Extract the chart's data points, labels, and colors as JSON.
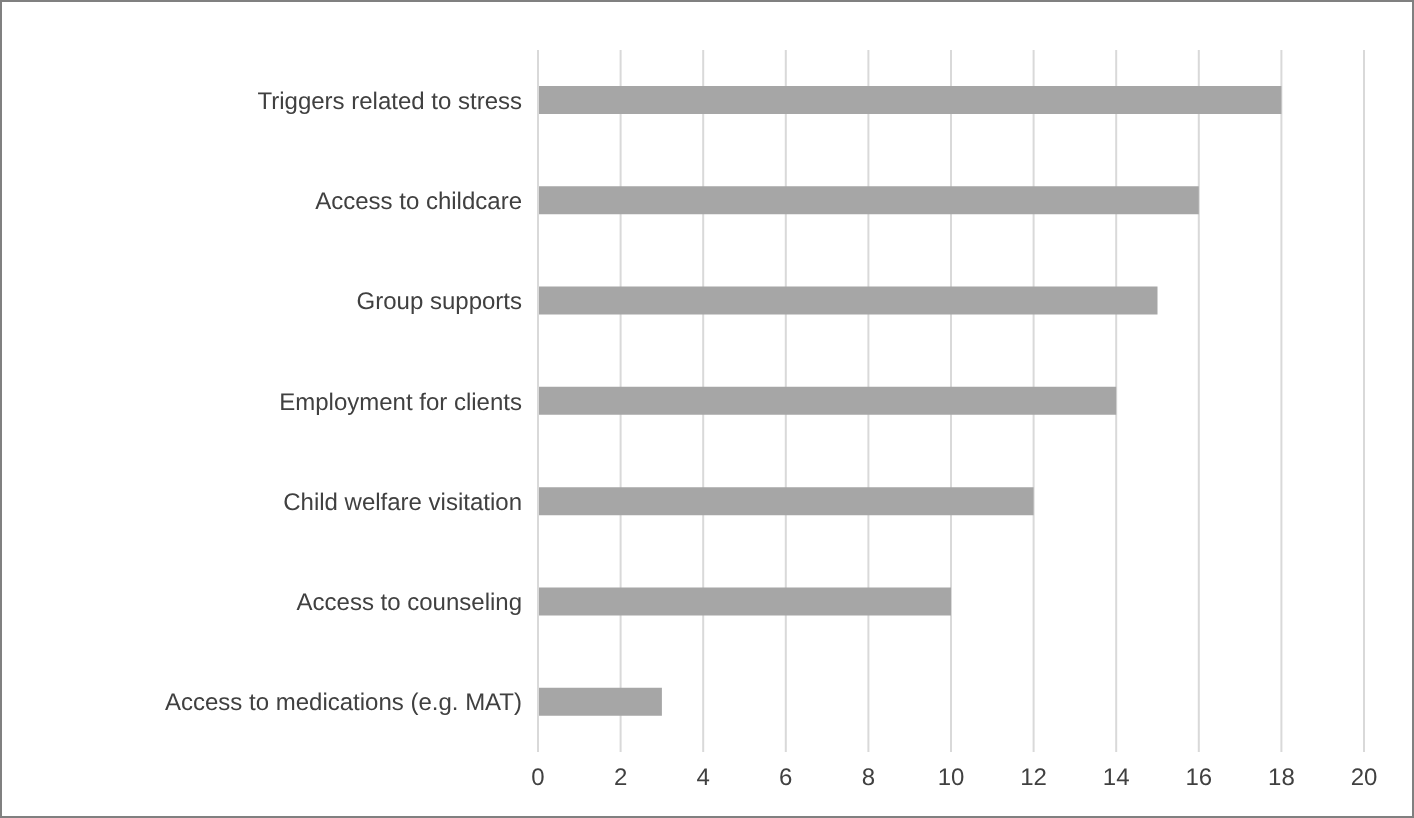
{
  "chart_data": {
    "type": "bar",
    "orientation": "horizontal",
    "categories": [
      "Triggers related to stress",
      "Access to childcare",
      "Group supports",
      "Employment for clients",
      "Child welfare visitation",
      "Access to counseling",
      "Access to medications (e.g. MAT)"
    ],
    "values": [
      18,
      16,
      15,
      14,
      12,
      10,
      3
    ],
    "color": "#a6a6a6",
    "xlim": [
      0,
      20
    ],
    "xticks": [
      0,
      2,
      4,
      6,
      8,
      10,
      12,
      14,
      16,
      18,
      20
    ],
    "grid": "x"
  }
}
